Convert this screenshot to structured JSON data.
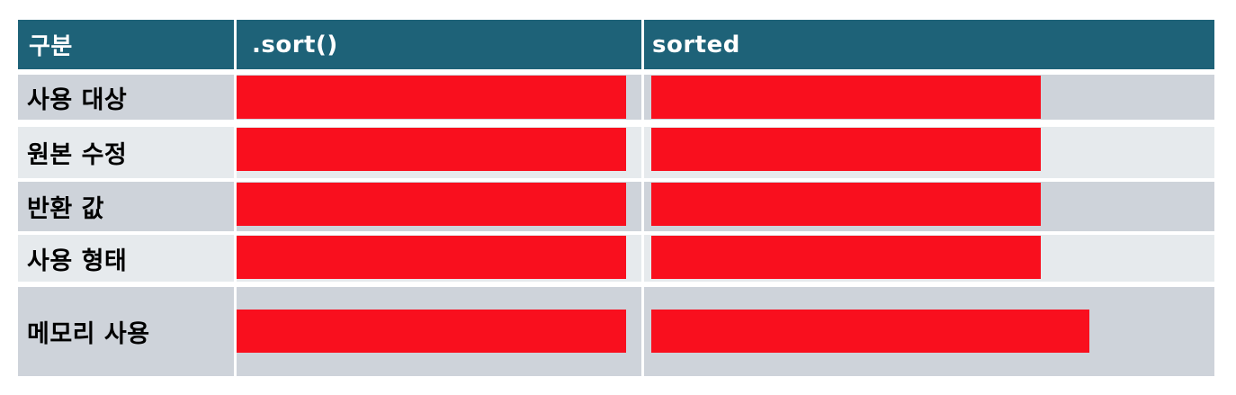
{
  "page": {
    "background": "#ffffff",
    "description_labels": {}
  },
  "colors": {
    "header-bg": "#1e6278",
    "header-text": "#ffffff",
    "row-dark": "#ced3da",
    "row-light": "#e6eaed",
    "redaction": "#f90f1e",
    "label-text": "#000000",
    "page-bg": "#ffffff"
  },
  "table": {
    "columns": [
      {
        "label": "구분"
      },
      {
        "label": ".sort()"
      },
      {
        "label": "sorted"
      }
    ],
    "rows": [
      {
        "label": "사용 대상",
        "cells": [
          {
            "redacted": true
          },
          {
            "redacted": true
          }
        ]
      },
      {
        "label": "원본 수정",
        "cells": [
          {
            "redacted": true
          },
          {
            "redacted": true
          }
        ]
      },
      {
        "label": "반환 값",
        "cells": [
          {
            "redacted": true
          },
          {
            "redacted": true
          }
        ]
      },
      {
        "label": "사용 형태",
        "cells": [
          {
            "redacted": true
          },
          {
            "redacted": true
          }
        ]
      },
      {
        "label": "메모리 사용",
        "cells": [
          {
            "redacted": true
          },
          {
            "redacted": true
          }
        ]
      }
    ]
  }
}
